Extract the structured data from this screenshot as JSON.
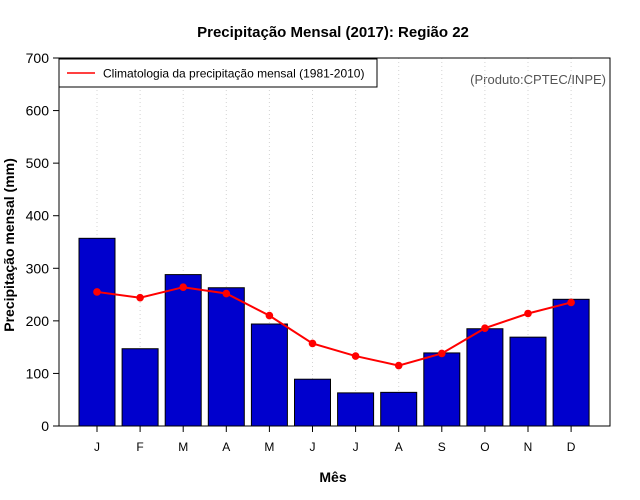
{
  "chart_data": {
    "type": "bar",
    "title": "Precipitação Mensal (2017): Região 22",
    "xlabel": "Mês",
    "ylabel": "Precipitação mensal (mm)",
    "ylim": [
      0,
      700
    ],
    "yticks": [
      0,
      100,
      200,
      300,
      400,
      500,
      600,
      700
    ],
    "categories": [
      "J",
      "F",
      "M",
      "A",
      "M",
      "J",
      "J",
      "A",
      "S",
      "O",
      "N",
      "D"
    ],
    "series": [
      {
        "name": "Precipitação mensal 2017",
        "kind": "bar",
        "color": "#0000cd",
        "values": [
          357,
          147,
          288,
          263,
          194,
          89,
          63,
          64,
          139,
          185,
          169,
          241
        ]
      },
      {
        "name": "Climatologia da precipitação mensal (1981-2010)",
        "kind": "line",
        "color": "#ff0000",
        "values": [
          255,
          244,
          264,
          252,
          210,
          157,
          133,
          115,
          138,
          186,
          214,
          235
        ]
      }
    ],
    "legend": {
      "position": "top-left",
      "entries": [
        "Climatologia da precipitação mensal (1981-2010)"
      ]
    },
    "source_note": "(Produto:CPTEC/INPE)",
    "grid": "vertical dotted"
  }
}
